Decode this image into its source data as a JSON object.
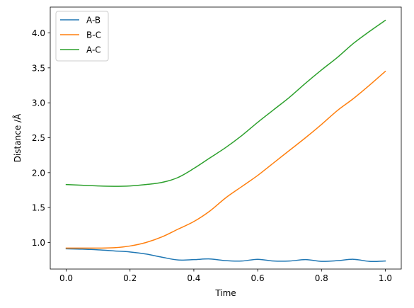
{
  "chart_data": {
    "type": "line",
    "title": "",
    "xlabel": "Time",
    "ylabel": "Distance /Å",
    "xlim": [
      -0.05,
      1.05
    ],
    "ylim": [
      0.62,
      4.37
    ],
    "xticks": [
      0.0,
      0.2,
      0.4,
      0.6,
      0.8,
      1.0
    ],
    "xtick_labels": [
      "0.0",
      "0.2",
      "0.4",
      "0.6",
      "0.8",
      "1.0"
    ],
    "yticks": [
      1.0,
      1.5,
      2.0,
      2.5,
      3.0,
      3.5,
      4.0
    ],
    "ytick_labels": [
      "1.0",
      "1.5",
      "2.0",
      "2.5",
      "3.0",
      "3.5",
      "4.0"
    ],
    "grid": false,
    "legend_position": "top-left",
    "x": [
      0.0,
      0.05,
      0.1,
      0.15,
      0.2,
      0.25,
      0.3,
      0.35,
      0.4,
      0.45,
      0.5,
      0.55,
      0.6,
      0.65,
      0.7,
      0.75,
      0.8,
      0.85,
      0.9,
      0.95,
      1.0
    ],
    "series": [
      {
        "name": "A-B",
        "color": "#1f77b4",
        "values": [
          0.91,
          0.905,
          0.895,
          0.88,
          0.865,
          0.835,
          0.79,
          0.75,
          0.755,
          0.765,
          0.74,
          0.735,
          0.76,
          0.735,
          0.735,
          0.755,
          0.73,
          0.74,
          0.76,
          0.73,
          0.735
        ]
      },
      {
        "name": "B-C",
        "color": "#ff7f0e",
        "values": [
          0.92,
          0.92,
          0.92,
          0.925,
          0.95,
          1.0,
          1.08,
          1.19,
          1.3,
          1.45,
          1.64,
          1.8,
          1.96,
          2.14,
          2.32,
          2.5,
          2.69,
          2.89,
          3.06,
          3.25,
          3.45
        ]
      },
      {
        "name": "A-C",
        "color": "#2ca02c",
        "values": [
          1.83,
          1.82,
          1.81,
          1.805,
          1.81,
          1.83,
          1.86,
          1.93,
          2.06,
          2.21,
          2.36,
          2.53,
          2.72,
          2.9,
          3.08,
          3.28,
          3.47,
          3.65,
          3.85,
          4.02,
          4.18
        ]
      }
    ]
  }
}
